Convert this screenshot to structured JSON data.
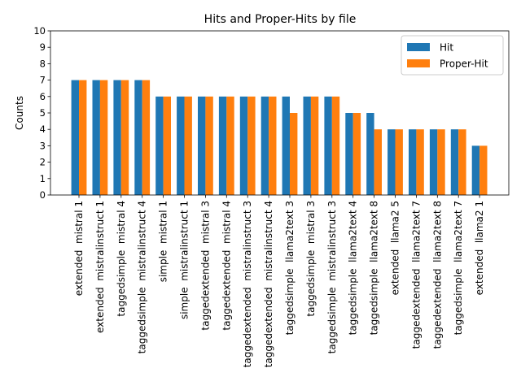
{
  "chart_data": {
    "type": "bar",
    "title": "Hits and Proper-Hits by file",
    "xlabel": "",
    "ylabel": "Counts",
    "ylim": [
      0,
      10
    ],
    "yticks": [
      0,
      1,
      2,
      3,
      4,
      5,
      6,
      7,
      8,
      9,
      10
    ],
    "grid": false,
    "legend_position": "top-right",
    "categories": [
      "extended  mistral 1",
      "extended  mistralinstruct 1",
      "taggedsimple  mistral 4",
      "taggedsimple  mistralinstruct 4",
      "simple  mistral 1",
      "simple  mistralinstruct 1",
      "taggedextended  mistral 3",
      "taggedextended  mistral 4",
      "taggedextended  mistralinstruct 3",
      "taggedextended  mistralinstruct 4",
      "taggedsimple  llama2text 3",
      "taggedsimple  mistral 3",
      "taggedsimple  mistralinstruct 3",
      "taggedsimple  llama2text 4",
      "taggedsimple  llama2text 8",
      "extended  llama2 5",
      "taggedextended  llama2text 7",
      "taggedextended  llama2text 8",
      "taggedsimple  llama2text 7",
      "extended  llama2 1"
    ],
    "series": [
      {
        "name": "Hit",
        "color": "#1f77b4",
        "values": [
          7,
          7,
          7,
          7,
          6,
          6,
          6,
          6,
          6,
          6,
          6,
          6,
          6,
          5,
          5,
          4,
          4,
          4,
          4,
          3
        ]
      },
      {
        "name": "Proper-Hit",
        "color": "#ff7f0e",
        "values": [
          7,
          7,
          7,
          7,
          6,
          6,
          6,
          6,
          6,
          6,
          5,
          6,
          6,
          5,
          4,
          4,
          4,
          4,
          4,
          3
        ]
      }
    ]
  }
}
